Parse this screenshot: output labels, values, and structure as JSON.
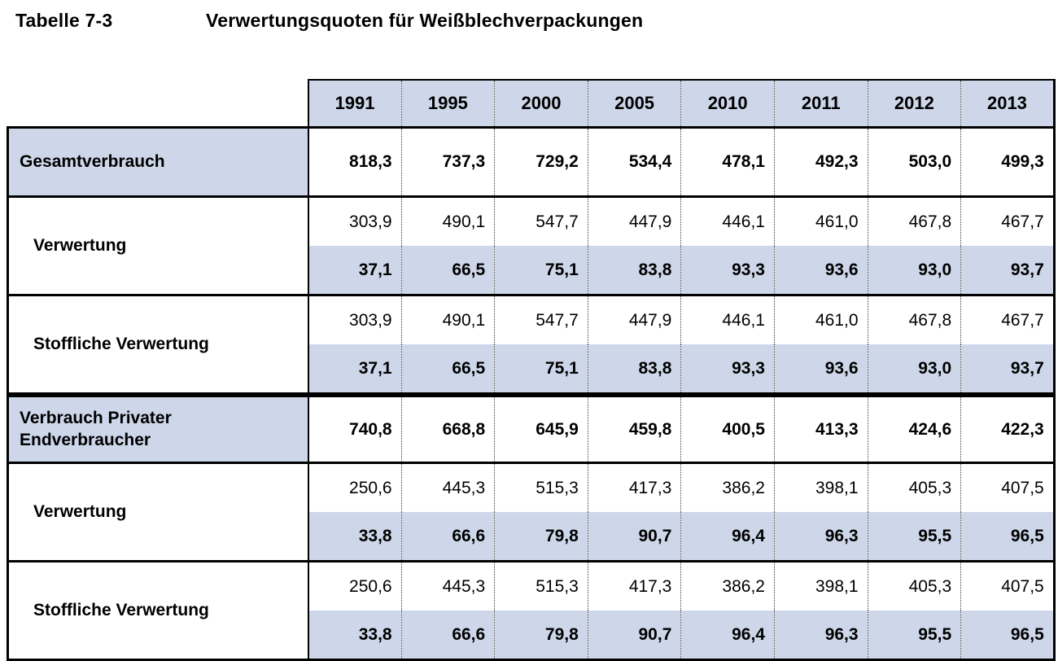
{
  "caption": {
    "number": "Tabelle 7-3",
    "text": "Verwertungsquoten für Weißblechverpackungen"
  },
  "colors": {
    "shading_fill": "#cdd7e9",
    "border": "#000000"
  },
  "chart_data": {
    "type": "table",
    "title": "Verwertungsquoten für Weißblechverpackungen",
    "columns": [
      "1991",
      "1995",
      "2000",
      "2005",
      "2010",
      "2011",
      "2012",
      "2013"
    ],
    "rows": [
      {
        "kind": "single",
        "label": "Gesamtverbrauch",
        "values": [
          "818,3",
          "737,3",
          "729,2",
          "534,4",
          "478,1",
          "492,3",
          "503,0",
          "499,3"
        ]
      },
      {
        "kind": "double",
        "label": "Verwertung",
        "tonnage": [
          "303,9",
          "490,1",
          "547,7",
          "447,9",
          "446,1",
          "461,0",
          "467,8",
          "467,7"
        ],
        "quote": [
          "37,1",
          "66,5",
          "75,1",
          "83,8",
          "93,3",
          "93,6",
          "93,0",
          "93,7"
        ]
      },
      {
        "kind": "double",
        "label": "Stoffliche Verwertung",
        "tonnage": [
          "303,9",
          "490,1",
          "547,7",
          "447,9",
          "446,1",
          "461,0",
          "467,8",
          "467,7"
        ],
        "quote": [
          "37,1",
          "66,5",
          "75,1",
          "83,8",
          "93,3",
          "93,6",
          "93,0",
          "93,7"
        ]
      },
      {
        "kind": "single",
        "thick_top": true,
        "label": "Verbrauch Privater Endverbraucher",
        "values": [
          "740,8",
          "668,8",
          "645,9",
          "459,8",
          "400,5",
          "413,3",
          "424,6",
          "422,3"
        ]
      },
      {
        "kind": "double",
        "label": "Verwertung",
        "tonnage": [
          "250,6",
          "445,3",
          "515,3",
          "417,3",
          "386,2",
          "398,1",
          "405,3",
          "407,5"
        ],
        "quote": [
          "33,8",
          "66,6",
          "79,8",
          "90,7",
          "96,4",
          "96,3",
          "95,5",
          "96,5"
        ]
      },
      {
        "kind": "double",
        "label": "Stoffliche Verwertung",
        "tonnage": [
          "250,6",
          "445,3",
          "515,3",
          "417,3",
          "386,2",
          "398,1",
          "405,3",
          "407,5"
        ],
        "quote": [
          "33,8",
          "66,6",
          "79,8",
          "90,7",
          "96,4",
          "96,3",
          "95,5",
          "96,5"
        ]
      }
    ]
  }
}
